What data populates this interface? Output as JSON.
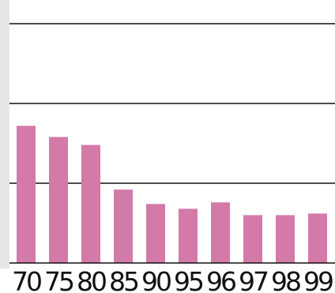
{
  "colors": {
    "bar": "#d47aa9",
    "gridline": "#111111",
    "left_strip": "#e6e6e6",
    "background": "#ffffff",
    "text": "#111111"
  },
  "chart_data": {
    "type": "bar",
    "title": "",
    "xlabel": "",
    "ylabel": "",
    "categories": [
      "70",
      "75",
      "80",
      "85",
      "90",
      "95",
      "96",
      "97",
      "98",
      "99"
    ],
    "values": [
      17.2,
      15.8,
      14.8,
      9.2,
      7.4,
      6.8,
      7.6,
      6.0,
      6.0,
      6.2
    ],
    "ylim": [
      0,
      30
    ],
    "ytick_values": [
      0,
      10,
      20,
      30
    ],
    "ytick_labels_visible": false,
    "grid": true,
    "legend": "none"
  }
}
